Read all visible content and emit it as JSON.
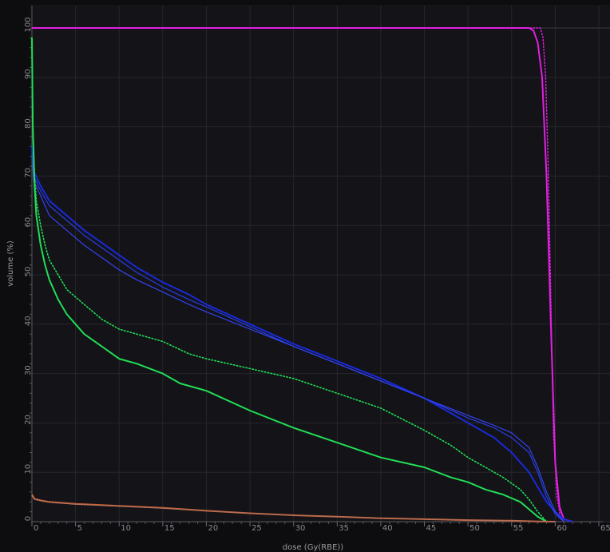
{
  "chart_data": {
    "type": "line",
    "xlabel": "dose (Gy(RBE))",
    "ylabel": "volume (%)",
    "xlim": [
      0,
      65
    ],
    "ylim": [
      0,
      100
    ],
    "grid": true,
    "x_ticks": [
      0,
      5,
      10,
      15,
      20,
      25,
      30,
      35,
      40,
      45,
      50,
      55,
      60,
      65
    ],
    "y_ticks": [
      0,
      10,
      20,
      30,
      40,
      50,
      60,
      70,
      80,
      90,
      100
    ],
    "series": [
      {
        "color": "#e020e0",
        "style": "solid",
        "width": 2,
        "x": [
          0,
          57,
          57.5,
          58,
          58.5,
          59,
          59.5,
          60,
          60.5,
          61,
          62
        ],
        "y": [
          100,
          100,
          99.5,
          97,
          90,
          70,
          40,
          12,
          3,
          0.5,
          0
        ]
      },
      {
        "color": "#e020e0",
        "style": "dotted",
        "width": 1.5,
        "x": [
          0,
          58.3,
          58.6,
          58.9,
          59.2,
          59.5,
          59.8,
          60.2,
          60.6,
          61
        ],
        "y": [
          100,
          100,
          98,
          90,
          72,
          45,
          18,
          5,
          1,
          0
        ]
      },
      {
        "color": "#1a2ad8",
        "style": "solid",
        "width": 2,
        "x": [
          0,
          0.2,
          1,
          2,
          4,
          6,
          8,
          10,
          12,
          15,
          18,
          20,
          25,
          30,
          35,
          40,
          45,
          50,
          53,
          55,
          57,
          58,
          59,
          60,
          61,
          62
        ],
        "y": [
          76,
          71,
          68,
          65,
          62,
          59,
          56.5,
          54,
          51.5,
          48.5,
          46,
          44,
          40,
          36,
          32.5,
          29,
          25,
          20,
          17,
          14,
          10,
          7,
          4,
          2,
          0.5,
          0
        ]
      },
      {
        "color": "#2a3ce8",
        "style": "solid",
        "width": 1.2,
        "x": [
          0,
          0.2,
          1,
          2,
          4,
          6,
          8,
          10,
          12,
          15,
          18,
          20,
          25,
          30,
          35,
          40,
          45,
          50,
          53,
          55,
          57,
          58,
          59,
          60,
          61
        ],
        "y": [
          75,
          70,
          67,
          64,
          61,
          58,
          55.5,
          53,
          50.5,
          47.5,
          45,
          43.5,
          39.5,
          35.5,
          32,
          28.5,
          25,
          21,
          19,
          17,
          14,
          10,
          5,
          1.5,
          0
        ]
      },
      {
        "color": "#3344f0",
        "style": "solid",
        "width": 1.2,
        "x": [
          0,
          0.2,
          1,
          2,
          4,
          6,
          8,
          10,
          12,
          15,
          18,
          20,
          25,
          30,
          35,
          40,
          45,
          50,
          53,
          55,
          57,
          58,
          59,
          60,
          61
        ],
        "y": [
          74,
          69,
          66,
          62,
          59,
          56,
          53.5,
          51,
          49,
          46.5,
          44,
          42.5,
          39,
          35.5,
          32,
          28.5,
          25,
          21.5,
          19.5,
          18,
          15,
          11,
          6,
          2,
          0
        ]
      },
      {
        "color": "#22dd55",
        "style": "solid",
        "width": 2,
        "x": [
          0,
          0.1,
          0.3,
          0.5,
          1,
          1.5,
          2,
          3,
          4,
          5,
          6,
          8,
          10,
          12,
          15,
          17,
          20,
          25,
          30,
          35,
          40,
          45,
          48,
          50,
          52,
          54,
          56,
          57,
          58,
          59
        ],
        "y": [
          98,
          80,
          68,
          62,
          56,
          52,
          49,
          45,
          42,
          40,
          38,
          35.5,
          33,
          32,
          30,
          28,
          26.5,
          22.5,
          19,
          16,
          13,
          11,
          9,
          8,
          6.5,
          5.5,
          4,
          2.5,
          1,
          0
        ]
      },
      {
        "color": "#22dd55",
        "style": "dotted",
        "width": 1.6,
        "x": [
          0,
          0.1,
          0.3,
          0.5,
          1,
          1.5,
          2,
          3,
          4,
          5,
          6,
          8,
          10,
          12,
          15,
          18,
          20,
          25,
          30,
          35,
          40,
          45,
          48,
          50,
          52,
          54,
          56,
          57,
          58,
          59
        ],
        "y": [
          98,
          81,
          70,
          65,
          60,
          56,
          53,
          50,
          47,
          45.5,
          44,
          41,
          39,
          38,
          36.5,
          34,
          33,
          31,
          29,
          26,
          23,
          18.5,
          15.5,
          13,
          11,
          9,
          6.5,
          4.5,
          2,
          0
        ]
      },
      {
        "color": "#c8623c",
        "style": "solid",
        "width": 2,
        "x": [
          0,
          0.3,
          1,
          2,
          5,
          10,
          15,
          20,
          25,
          30,
          35,
          40,
          45,
          50,
          55,
          58,
          60
        ],
        "y": [
          5.5,
          4.6,
          4.3,
          4,
          3.6,
          3.2,
          2.8,
          2.2,
          1.7,
          1.3,
          1,
          0.7,
          0.5,
          0.3,
          0.2,
          0.05,
          0
        ]
      },
      {
        "color": "#a87a66",
        "style": "dotted",
        "width": 1.2,
        "x": [
          0,
          0.3,
          1,
          2,
          5,
          10,
          15,
          20,
          25,
          30,
          35,
          40,
          45,
          50,
          55,
          58,
          60
        ],
        "y": [
          5.2,
          4.5,
          4.2,
          3.9,
          3.5,
          3.1,
          2.7,
          2.2,
          1.7,
          1.3,
          1,
          0.7,
          0.5,
          0.3,
          0.2,
          0.05,
          0
        ]
      }
    ]
  }
}
